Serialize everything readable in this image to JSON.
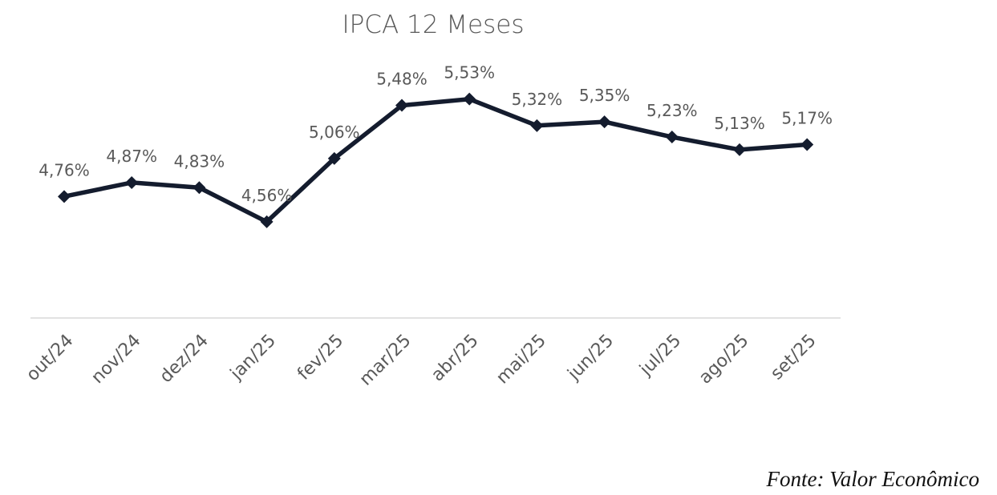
{
  "source": "Fonte: Valor Econômico",
  "colors": {
    "line": "#141c2e",
    "axis": "#d9d9d9",
    "text": "#595959"
  },
  "chart_data": {
    "type": "line",
    "title": "IPCA 12 Meses",
    "xlabel": "",
    "ylabel": "",
    "grid": false,
    "legend": "none",
    "ylim": [
      3.8,
      5.8
    ],
    "categories": [
      "out/24",
      "nov/24",
      "dez/24",
      "jan/25",
      "fev/25",
      "mar/25",
      "abr/25",
      "mai/25",
      "jun/25",
      "jul/25",
      "ago/25",
      "set/25"
    ],
    "series": [
      {
        "name": "IPCA 12 Meses",
        "values": [
          4.76,
          4.87,
          4.83,
          4.56,
          5.06,
          5.48,
          5.53,
          5.32,
          5.35,
          5.23,
          5.13,
          5.17
        ],
        "labels": [
          "4,76%",
          "4,87%",
          "4,83%",
          "4,56%",
          "5,06%",
          "5,48%",
          "5,53%",
          "5,32%",
          "5,35%",
          "5,23%",
          "5,13%",
          "5,17%"
        ]
      }
    ]
  }
}
